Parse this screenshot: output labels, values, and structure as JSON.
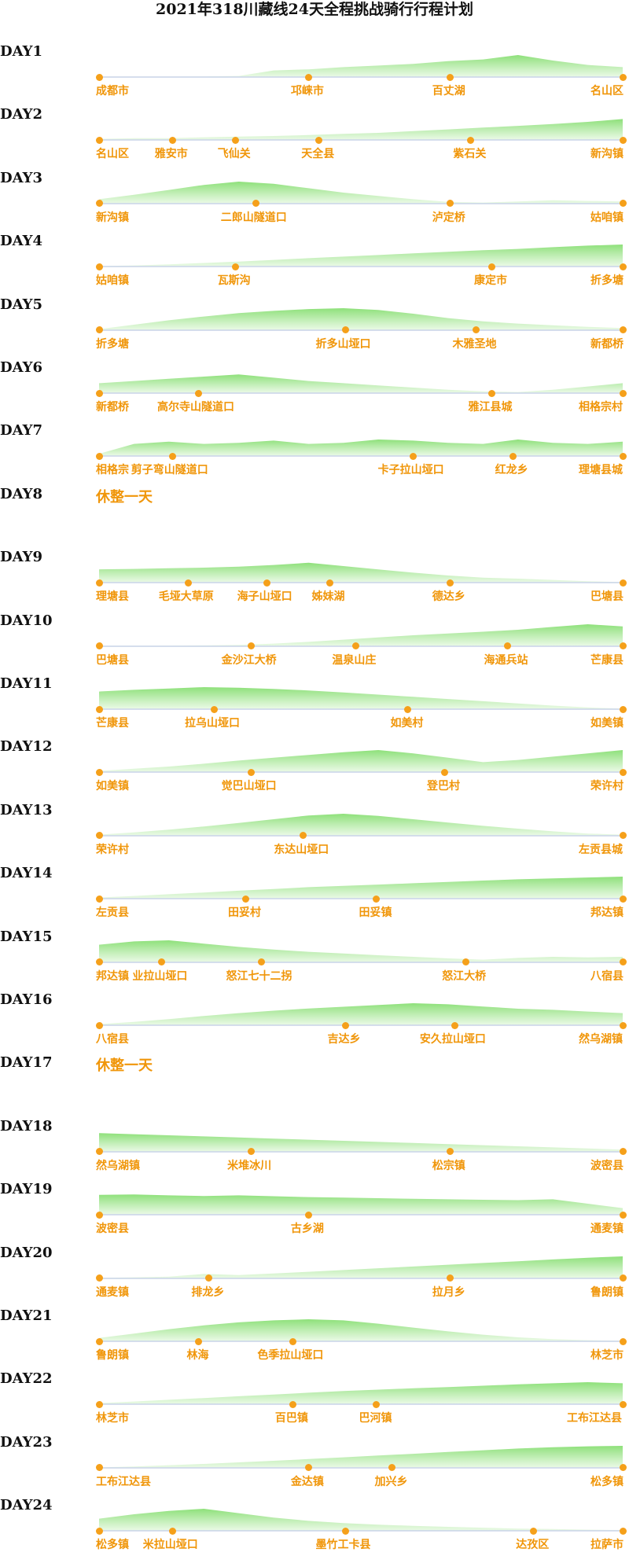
{
  "title": "2021年318川藏线24天全程挑战骑行行程计划",
  "days": [
    {
      "label": "DAY1",
      "stops": [
        {
          "name": "成都市",
          "pos": 0
        },
        {
          "name": "邛崃市",
          "pos": 0.4
        },
        {
          "name": "百丈湖",
          "pos": 0.67
        },
        {
          "name": "名山区",
          "pos": 1
        }
      ],
      "profile": [
        0.02,
        0.02,
        0.02,
        0.03,
        0.05,
        0.3,
        0.35,
        0.45,
        0.52,
        0.6,
        0.72,
        0.8,
        1.0,
        0.75,
        0.55,
        0.45
      ]
    },
    {
      "label": "DAY2",
      "stops": [
        {
          "name": "名山区",
          "pos": 0
        },
        {
          "name": "雅安市",
          "pos": 0.14
        },
        {
          "name": "飞仙关",
          "pos": 0.26
        },
        {
          "name": "天全县",
          "pos": 0.42
        },
        {
          "name": "紫石关",
          "pos": 0.71
        },
        {
          "name": "新沟镇",
          "pos": 1
        }
      ],
      "profile": [
        0.05,
        0.08,
        0.08,
        0.12,
        0.15,
        0.18,
        0.22,
        0.28,
        0.32,
        0.4,
        0.48,
        0.56,
        0.64,
        0.72,
        0.82,
        0.95
      ]
    },
    {
      "label": "DAY3",
      "stops": [
        {
          "name": "新沟镇",
          "pos": 0
        },
        {
          "name": "二郎山隧道口",
          "pos": 0.3
        },
        {
          "name": "泸定桥",
          "pos": 0.67
        },
        {
          "name": "姑咱镇",
          "pos": 1
        }
      ],
      "profile": [
        0.2,
        0.4,
        0.62,
        0.85,
        1.0,
        0.9,
        0.7,
        0.5,
        0.35,
        0.2,
        0.08,
        0.05,
        0.1,
        0.15,
        0.12,
        0.1
      ]
    },
    {
      "label": "DAY4",
      "stops": [
        {
          "name": "姑咱镇",
          "pos": 0
        },
        {
          "name": "瓦斯沟",
          "pos": 0.26
        },
        {
          "name": "康定市",
          "pos": 0.75
        },
        {
          "name": "折多塘",
          "pos": 1
        }
      ],
      "profile": [
        0.02,
        0.05,
        0.1,
        0.16,
        0.22,
        0.3,
        0.38,
        0.45,
        0.52,
        0.6,
        0.67,
        0.74,
        0.8,
        0.88,
        0.95,
        1.0
      ]
    },
    {
      "label": "DAY5",
      "stops": [
        {
          "name": "折多塘",
          "pos": 0
        },
        {
          "name": "折多山垭口",
          "pos": 0.47
        },
        {
          "name": "木雅圣地",
          "pos": 0.72
        },
        {
          "name": "新都桥",
          "pos": 1
        }
      ],
      "profile": [
        0.05,
        0.25,
        0.45,
        0.62,
        0.78,
        0.88,
        0.96,
        1.0,
        0.92,
        0.75,
        0.55,
        0.4,
        0.3,
        0.22,
        0.15,
        0.1
      ]
    },
    {
      "label": "DAY6",
      "stops": [
        {
          "name": "新都桥",
          "pos": 0
        },
        {
          "name": "高尔寺山隧道口",
          "pos": 0.19
        },
        {
          "name": "雅江县城",
          "pos": 0.75
        },
        {
          "name": "相格宗村",
          "pos": 1
        }
      ],
      "profile": [
        0.45,
        0.55,
        0.65,
        0.75,
        0.85,
        0.7,
        0.55,
        0.45,
        0.35,
        0.25,
        0.15,
        0.08,
        0.05,
        0.15,
        0.3,
        0.45
      ]
    },
    {
      "label": "DAY7",
      "stops": [
        {
          "name": "相格宗",
          "pos": 0
        },
        {
          "name": "剪子弯山隧道口",
          "pos": 0.14
        },
        {
          "name": "卡子拉山垭口",
          "pos": 0.6
        },
        {
          "name": "红龙乡",
          "pos": 0.79
        },
        {
          "name": "理塘县城",
          "pos": 1
        }
      ],
      "profile": [
        0.1,
        0.55,
        0.65,
        0.55,
        0.6,
        0.7,
        0.55,
        0.6,
        0.75,
        0.7,
        0.6,
        0.55,
        0.75,
        0.6,
        0.55,
        0.65
      ]
    },
    {
      "label": "DAY8",
      "rest": "休整一天"
    },
    {
      "label": "DAY9",
      "stops": [
        {
          "name": "理塘县",
          "pos": 0
        },
        {
          "name": "毛垭大草原",
          "pos": 0.17
        },
        {
          "name": "海子山垭口",
          "pos": 0.32
        },
        {
          "name": "姊妹湖",
          "pos": 0.44
        },
        {
          "name": "德达乡",
          "pos": 0.67
        },
        {
          "name": "巴塘县",
          "pos": 1
        }
      ],
      "profile": [
        0.6,
        0.62,
        0.65,
        0.68,
        0.72,
        0.8,
        0.9,
        0.75,
        0.6,
        0.45,
        0.32,
        0.22,
        0.18,
        0.12,
        0.06,
        0.02
      ]
    },
    {
      "label": "DAY10",
      "stops": [
        {
          "name": "巴塘县",
          "pos": 0
        },
        {
          "name": "金沙江大桥",
          "pos": 0.29
        },
        {
          "name": "温泉山庄",
          "pos": 0.49
        },
        {
          "name": "海通兵站",
          "pos": 0.78
        },
        {
          "name": "芒康县",
          "pos": 1
        }
      ],
      "profile": [
        0.02,
        0.02,
        0.03,
        0.04,
        0.06,
        0.12,
        0.2,
        0.3,
        0.4,
        0.5,
        0.58,
        0.66,
        0.75,
        0.88,
        1.0,
        0.9
      ]
    },
    {
      "label": "DAY11",
      "stops": [
        {
          "name": "芒康县",
          "pos": 0
        },
        {
          "name": "拉乌山垭口",
          "pos": 0.22
        },
        {
          "name": "如美村",
          "pos": 0.59
        },
        {
          "name": "如美镇",
          "pos": 1
        }
      ],
      "profile": [
        0.8,
        0.88,
        0.94,
        1.0,
        0.97,
        0.92,
        0.85,
        0.76,
        0.66,
        0.56,
        0.46,
        0.36,
        0.26,
        0.16,
        0.08,
        0.02
      ]
    },
    {
      "label": "DAY12",
      "stops": [
        {
          "name": "如美镇",
          "pos": 0
        },
        {
          "name": "觉巴山垭口",
          "pos": 0.29
        },
        {
          "name": "登巴村",
          "pos": 0.66
        },
        {
          "name": "荣许村",
          "pos": 1
        }
      ],
      "profile": [
        0.05,
        0.15,
        0.25,
        0.38,
        0.52,
        0.65,
        0.78,
        0.9,
        1.0,
        0.85,
        0.65,
        0.45,
        0.55,
        0.7,
        0.85,
        1.0
      ]
    },
    {
      "label": "DAY13",
      "stops": [
        {
          "name": "荣许村",
          "pos": 0
        },
        {
          "name": "东达山垭口",
          "pos": 0.39
        },
        {
          "name": "左贡县城",
          "pos": 1
        }
      ],
      "profile": [
        0.05,
        0.15,
        0.28,
        0.42,
        0.58,
        0.75,
        0.92,
        1.0,
        0.9,
        0.75,
        0.6,
        0.45,
        0.32,
        0.2,
        0.1,
        0.05
      ]
    },
    {
      "label": "DAY14",
      "stops": [
        {
          "name": "左贡县",
          "pos": 0
        },
        {
          "name": "田妥村",
          "pos": 0.28
        },
        {
          "name": "田妥镇",
          "pos": 0.53
        },
        {
          "name": "邦达镇",
          "pos": 1
        }
      ],
      "profile": [
        0.05,
        0.12,
        0.2,
        0.28,
        0.36,
        0.44,
        0.52,
        0.58,
        0.64,
        0.7,
        0.76,
        0.82,
        0.88,
        0.92,
        0.96,
        1.0
      ]
    },
    {
      "label": "DAY15",
      "stops": [
        {
          "name": "邦达镇",
          "pos": 0
        },
        {
          "name": "业拉山垭口",
          "pos": 0.12
        },
        {
          "name": "怒江七十二拐",
          "pos": 0.31
        },
        {
          "name": "怒江大桥",
          "pos": 0.7
        },
        {
          "name": "八宿县",
          "pos": 1
        }
      ],
      "profile": [
        0.8,
        0.95,
        1.0,
        0.85,
        0.7,
        0.58,
        0.48,
        0.4,
        0.32,
        0.25,
        0.18,
        0.12,
        0.2,
        0.25,
        0.22,
        0.25
      ]
    },
    {
      "label": "DAY16",
      "stops": [
        {
          "name": "八宿县",
          "pos": 0
        },
        {
          "name": "吉达乡",
          "pos": 0.47
        },
        {
          "name": "安久拉山垭口",
          "pos": 0.68
        },
        {
          "name": "然乌湖镇",
          "pos": 1
        }
      ],
      "profile": [
        0.05,
        0.15,
        0.28,
        0.42,
        0.55,
        0.66,
        0.76,
        0.84,
        0.92,
        1.0,
        0.95,
        0.85,
        0.75,
        0.7,
        0.62,
        0.55
      ]
    },
    {
      "label": "DAY17",
      "rest": "休整一天"
    },
    {
      "label": "DAY18",
      "stops": [
        {
          "name": "然乌湖镇",
          "pos": 0
        },
        {
          "name": "米堆冰川",
          "pos": 0.29
        },
        {
          "name": "松宗镇",
          "pos": 0.67
        },
        {
          "name": "波密县",
          "pos": 1
        }
      ],
      "profile": [
        0.85,
        0.8,
        0.75,
        0.7,
        0.65,
        0.6,
        0.55,
        0.5,
        0.45,
        0.4,
        0.35,
        0.3,
        0.25,
        0.2,
        0.15,
        0.1
      ]
    },
    {
      "label": "DAY19",
      "stops": [
        {
          "name": "波密县",
          "pos": 0
        },
        {
          "name": "古乡湖",
          "pos": 0.4
        },
        {
          "name": "通麦镇",
          "pos": 1
        }
      ],
      "profile": [
        0.9,
        0.92,
        0.88,
        0.85,
        0.88,
        0.84,
        0.8,
        0.78,
        0.75,
        0.72,
        0.7,
        0.68,
        0.66,
        0.7,
        0.5,
        0.3
      ]
    },
    {
      "label": "DAY20",
      "stops": [
        {
          "name": "通麦镇",
          "pos": 0
        },
        {
          "name": "排龙乡",
          "pos": 0.21
        },
        {
          "name": "拉月乡",
          "pos": 0.67
        },
        {
          "name": "鲁朗镇",
          "pos": 1
        }
      ],
      "profile": [
        0.02,
        0.05,
        0.08,
        0.2,
        0.15,
        0.22,
        0.3,
        0.38,
        0.46,
        0.54,
        0.62,
        0.7,
        0.78,
        0.86,
        0.94,
        1.0
      ]
    },
    {
      "label": "DAY21",
      "stops": [
        {
          "name": "鲁朗镇",
          "pos": 0
        },
        {
          "name": "林海",
          "pos": 0.19
        },
        {
          "name": "色季拉山垭口",
          "pos": 0.37
        },
        {
          "name": "林芝市",
          "pos": 1
        }
      ],
      "profile": [
        0.15,
        0.35,
        0.55,
        0.72,
        0.86,
        0.95,
        1.0,
        0.95,
        0.8,
        0.62,
        0.45,
        0.3,
        0.18,
        0.1,
        0.05,
        0.02
      ]
    },
    {
      "label": "DAY22",
      "stops": [
        {
          "name": "林芝市",
          "pos": 0
        },
        {
          "name": "百巴镇",
          "pos": 0.37
        },
        {
          "name": "巴河镇",
          "pos": 0.53
        },
        {
          "name": "工布江达县",
          "pos": 1
        }
      ],
      "profile": [
        0.05,
        0.12,
        0.2,
        0.28,
        0.36,
        0.44,
        0.52,
        0.6,
        0.66,
        0.72,
        0.78,
        0.84,
        0.9,
        0.95,
        1.0,
        0.95
      ]
    },
    {
      "label": "DAY23",
      "stops": [
        {
          "name": "工布江达县",
          "pos": 0
        },
        {
          "name": "金达镇",
          "pos": 0.4
        },
        {
          "name": "加兴乡",
          "pos": 0.56
        },
        {
          "name": "松多镇",
          "pos": 1
        }
      ],
      "profile": [
        0.02,
        0.06,
        0.12,
        0.18,
        0.25,
        0.32,
        0.4,
        0.48,
        0.56,
        0.64,
        0.72,
        0.8,
        0.88,
        0.94,
        0.98,
        1.0
      ]
    },
    {
      "label": "DAY24",
      "stops": [
        {
          "name": "松多镇",
          "pos": 0
        },
        {
          "name": "米拉山垭口",
          "pos": 0.14
        },
        {
          "name": "墨竹工卡县",
          "pos": 0.47
        },
        {
          "name": "达孜区",
          "pos": 0.83
        },
        {
          "name": "拉萨市",
          "pos": 1
        }
      ],
      "profile": [
        0.55,
        0.75,
        0.9,
        1.0,
        0.8,
        0.6,
        0.45,
        0.35,
        0.28,
        0.22,
        0.18,
        0.14,
        0.1,
        0.08,
        0.05,
        0.03
      ]
    }
  ]
}
